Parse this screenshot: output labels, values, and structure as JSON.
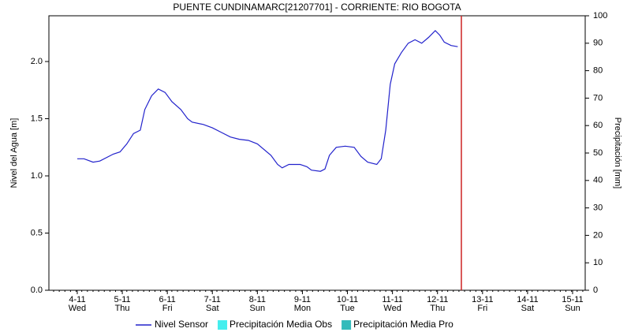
{
  "chart_data": {
    "type": "line",
    "title": "PUENTE CUNDINAMARC[21207701] - CORRIENTE: RIO BOGOTA",
    "ylabel": "Nivel del Agua [m]",
    "y2label": "Precipitación [mm]",
    "xlim": [
      -0.63,
      11.28
    ],
    "xticks": [
      {
        "value": 0,
        "label": "4-11"
      },
      {
        "value": 1,
        "label": "5-11"
      },
      {
        "value": 2,
        "label": "6-11"
      },
      {
        "value": 3,
        "label": "7-11"
      },
      {
        "value": 4,
        "label": "8-11"
      },
      {
        "value": 5,
        "label": "9-11"
      },
      {
        "value": 6,
        "label": "10-11"
      },
      {
        "value": 7,
        "label": "11-11"
      },
      {
        "value": 8,
        "label": "12-11"
      },
      {
        "value": 9,
        "label": "13-11"
      },
      {
        "value": 10,
        "label": "14-11"
      },
      {
        "value": 11,
        "label": "15-11"
      }
    ],
    "xtick_sublabels": [
      "Wed",
      "Thu",
      "Fri",
      "Sat",
      "Sun",
      "Mon",
      "Tue",
      "Wed",
      "Thu",
      "Fri",
      "Sat",
      "Sun"
    ],
    "ylim": [
      0,
      2.4
    ],
    "yticks": [
      {
        "value": 0,
        "label": "0.0"
      },
      0.5,
      {
        "value": 1,
        "label": "1.0"
      },
      1.5,
      {
        "value": 2,
        "label": "2.0"
      }
    ],
    "y2lim": [
      0,
      100
    ],
    "y2ticks": [
      0,
      10,
      20,
      30,
      40,
      50,
      60,
      70,
      80,
      90,
      100
    ],
    "vline": {
      "x": 8.53,
      "color": "#cc2222"
    },
    "series": [
      {
        "name": "Nivel Sensor",
        "color": "#2222cc",
        "x": [
          0,
          0.15,
          0.35,
          0.5,
          0.8,
          0.95,
          1.1,
          1.25,
          1.4,
          1.5,
          1.65,
          1.8,
          1.95,
          2.1,
          2.3,
          2.45,
          2.55,
          2.8,
          3.0,
          3.2,
          3.4,
          3.6,
          3.8,
          4.0,
          4.3,
          4.45,
          4.55,
          4.7,
          4.95,
          5.1,
          5.2,
          5.4,
          5.5,
          5.6,
          5.75,
          5.95,
          6.15,
          6.3,
          6.45,
          6.65,
          6.75,
          6.85,
          6.95,
          7.05,
          7.2,
          7.35,
          7.5,
          7.65,
          7.8,
          7.95,
          8.05,
          8.15,
          8.3,
          8.45
        ],
        "values": [
          1.15,
          1.15,
          1.12,
          1.13,
          1.19,
          1.21,
          1.28,
          1.37,
          1.4,
          1.58,
          1.7,
          1.76,
          1.73,
          1.65,
          1.58,
          1.5,
          1.47,
          1.45,
          1.42,
          1.38,
          1.34,
          1.32,
          1.31,
          1.28,
          1.18,
          1.1,
          1.07,
          1.1,
          1.1,
          1.08,
          1.05,
          1.04,
          1.06,
          1.18,
          1.25,
          1.26,
          1.25,
          1.17,
          1.12,
          1.1,
          1.15,
          1.4,
          1.8,
          1.98,
          2.08,
          2.16,
          2.19,
          2.16,
          2.21,
          2.27,
          2.23,
          2.17,
          2.14,
          2.13
        ]
      }
    ],
    "legend": [
      {
        "name": "Nivel Sensor",
        "color": "#2222cc",
        "symbol": "line"
      },
      {
        "name": "Precipitación Media Obs",
        "color": "#44eeee",
        "symbol": "square"
      },
      {
        "name": "Precipitación Media Pro",
        "color": "#33bbbb",
        "symbol": "square"
      }
    ]
  }
}
